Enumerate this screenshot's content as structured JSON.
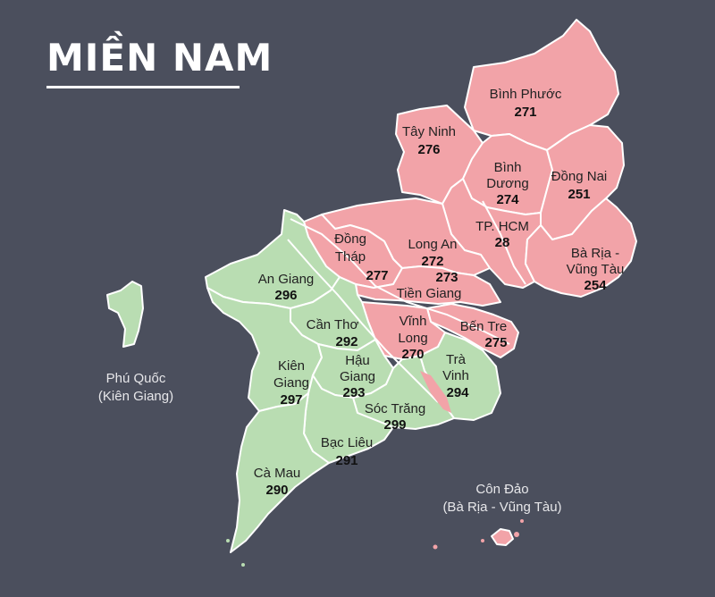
{
  "title": "MIỀN NAM",
  "colors": {
    "background": "#4b4f5d",
    "southeast": "#f2a3a8",
    "mekong_delta": "#b9ddb2",
    "label_light": "#e7e7ea"
  },
  "provinces": [
    {
      "name": "Bình Phước",
      "code": "271"
    },
    {
      "name": "Tây Ninh",
      "code": "276"
    },
    {
      "name": "Bình Dương",
      "name_lines": [
        "Bình",
        "Dương"
      ],
      "code": "274"
    },
    {
      "name": "Đồng Nai",
      "code": "251"
    },
    {
      "name": "TP. HCM",
      "code": "28"
    },
    {
      "name": "Bà Rịa - Vũng Tàu",
      "name_lines": [
        "Bà Rịa -",
        "Vũng Tàu"
      ],
      "code": "254"
    },
    {
      "name": "Long An",
      "code": "272"
    },
    {
      "name": "Đồng Tháp",
      "name_lines": [
        "Đồng",
        "Tháp"
      ],
      "code": "277"
    },
    {
      "name": "Tiền Giang",
      "code": "273"
    },
    {
      "name": "Bến Tre",
      "code": "275"
    },
    {
      "name": "Vĩnh Long",
      "name_lines": [
        "Vĩnh",
        "Long"
      ],
      "code": "270"
    },
    {
      "name": "Trà Vinh",
      "name_lines": [
        "Trà",
        "Vinh"
      ],
      "code": "294"
    },
    {
      "name": "An Giang",
      "code": "296"
    },
    {
      "name": "Cần Thơ",
      "code": "292"
    },
    {
      "name": "Kiên Giang",
      "name_lines": [
        "Kiên",
        "Giang"
      ],
      "code": "297"
    },
    {
      "name": "Hậu Giang",
      "name_lines": [
        "Hậu",
        "Giang"
      ],
      "code": "293"
    },
    {
      "name": "Sóc Trăng",
      "code": "299"
    },
    {
      "name": "Bạc Liêu",
      "code": "291"
    },
    {
      "name": "Cà Mau",
      "code": "290"
    }
  ],
  "islands": [
    {
      "name": "Phú Quốc",
      "province": "(Kiên Giang)"
    },
    {
      "name": "Côn Đảo",
      "province": "(Bà Rịa - Vũng Tàu)"
    }
  ]
}
